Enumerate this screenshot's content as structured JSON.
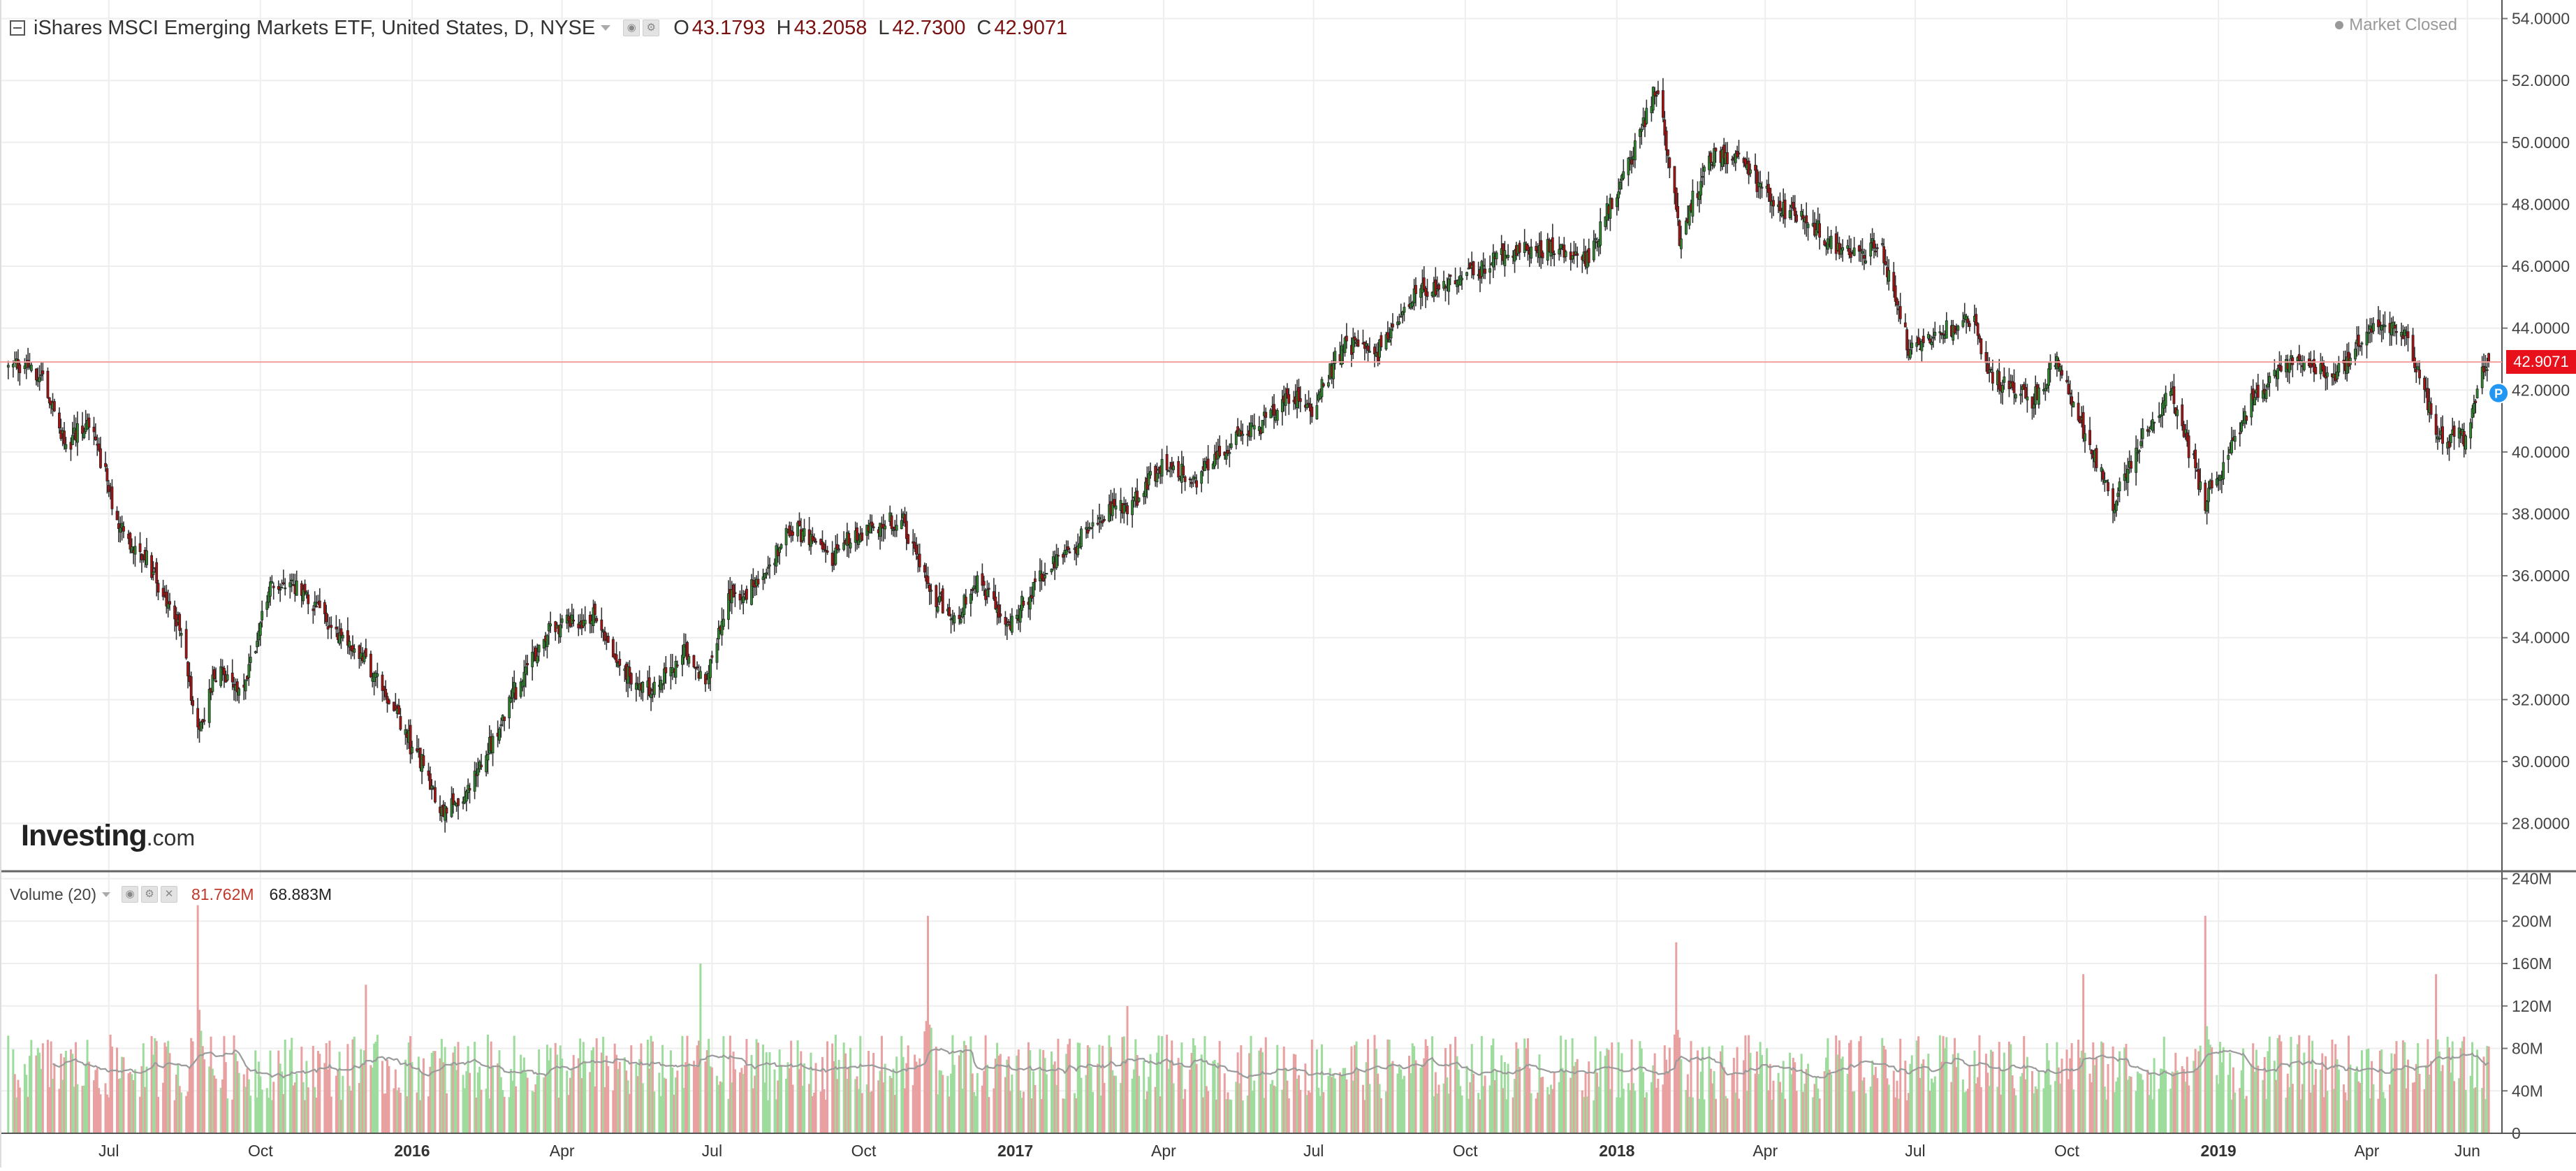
{
  "header": {
    "symbol_title": "iShares MSCI Emerging Markets ETF, United States, D, NYSE",
    "o_label": "O",
    "o_value": "43.1793",
    "h_label": "H",
    "h_value": "43.2058",
    "l_label": "L",
    "l_value": "42.7300",
    "c_label": "C",
    "c_value": "42.9071",
    "status": "Market Closed"
  },
  "volume_legend": {
    "title": "Volume (20)",
    "value_1": "81.762M",
    "value_2": "68.883M"
  },
  "logo": {
    "brand": "Investing",
    "suffix": ".com"
  },
  "last_price": "42.9071",
  "marker_label": "P",
  "colors": {
    "up": "#2e8b2e",
    "down": "#b01010",
    "vol_up": "#9edc9e",
    "vol_down": "#e9a0a0",
    "ma_line": "#9b9b9b",
    "last_price": "#e8101a",
    "grid": "#eeeeee"
  },
  "chart_data": [
    {
      "type": "candlestick",
      "title": "iShares MSCI Emerging Markets ETF, United States, D, NYSE",
      "xlabel": "",
      "ylabel": "",
      "ylim": [
        26.5,
        54.6
      ],
      "y_ticks": [
        "28.0000",
        "30.0000",
        "32.0000",
        "34.0000",
        "36.0000",
        "38.0000",
        "40.0000",
        "42.0000",
        "44.0000",
        "46.0000",
        "48.0000",
        "50.0000",
        "52.0000",
        "54.0000"
      ],
      "x_ticks": [
        {
          "label": "Jul",
          "date": "2015-07-01",
          "bold": false
        },
        {
          "label": "Oct",
          "date": "2015-10-01",
          "bold": false
        },
        {
          "label": "2016",
          "date": "2016-01-01",
          "bold": true
        },
        {
          "label": "Apr",
          "date": "2016-04-01",
          "bold": false
        },
        {
          "label": "Jul",
          "date": "2016-07-01",
          "bold": false
        },
        {
          "label": "Oct",
          "date": "2016-10-01",
          "bold": false
        },
        {
          "label": "2017",
          "date": "2017-01-01",
          "bold": true
        },
        {
          "label": "Apr",
          "date": "2017-04-01",
          "bold": false
        },
        {
          "label": "Jul",
          "date": "2017-07-01",
          "bold": false
        },
        {
          "label": "Oct",
          "date": "2017-10-01",
          "bold": false
        },
        {
          "label": "2018",
          "date": "2018-01-01",
          "bold": true
        },
        {
          "label": "Apr",
          "date": "2018-04-01",
          "bold": false
        },
        {
          "label": "Jul",
          "date": "2018-07-01",
          "bold": false
        },
        {
          "label": "Oct",
          "date": "2018-10-01",
          "bold": false
        },
        {
          "label": "2019",
          "date": "2019-01-01",
          "bold": true
        },
        {
          "label": "Apr",
          "date": "2019-04-01",
          "bold": false
        },
        {
          "label": "Jun",
          "date": "2019-06-01",
          "bold": false
        }
      ],
      "last_close": 42.9071,
      "close_path": [
        [
          "2015-05-01",
          42.9
        ],
        [
          "2015-05-20",
          42.6
        ],
        [
          "2015-06-05",
          40.2
        ],
        [
          "2015-06-20",
          40.9
        ],
        [
          "2015-07-08",
          37.5
        ],
        [
          "2015-07-25",
          36.4
        ],
        [
          "2015-08-15",
          33.9
        ],
        [
          "2015-08-24",
          30.8
        ],
        [
          "2015-09-05",
          33.1
        ],
        [
          "2015-09-20",
          32.3
        ],
        [
          "2015-10-08",
          35.8
        ],
        [
          "2015-10-25",
          35.6
        ],
        [
          "2015-11-15",
          34.2
        ],
        [
          "2015-12-05",
          33.1
        ],
        [
          "2015-12-20",
          31.8
        ],
        [
          "2016-01-10",
          29.5
        ],
        [
          "2016-01-21",
          28.2
        ],
        [
          "2016-02-10",
          29.6
        ],
        [
          "2016-03-01",
          32.0
        ],
        [
          "2016-03-25",
          34.2
        ],
        [
          "2016-04-20",
          34.7
        ],
        [
          "2016-05-10",
          32.8
        ],
        [
          "2016-05-25",
          32.3
        ],
        [
          "2016-06-15",
          33.6
        ],
        [
          "2016-06-27",
          32.6
        ],
        [
          "2016-07-10",
          35.1
        ],
        [
          "2016-07-30",
          35.8
        ],
        [
          "2016-08-20",
          37.6
        ],
        [
          "2016-09-12",
          36.6
        ],
        [
          "2016-09-30",
          37.5
        ],
        [
          "2016-10-25",
          37.7
        ],
        [
          "2016-11-10",
          35.6
        ],
        [
          "2016-11-25",
          34.6
        ],
        [
          "2016-12-10",
          35.8
        ],
        [
          "2016-12-28",
          34.4
        ],
        [
          "2017-01-20",
          36.2
        ],
        [
          "2017-02-20",
          37.8
        ],
        [
          "2017-03-15",
          38.5
        ],
        [
          "2017-03-31",
          39.5
        ],
        [
          "2017-04-20",
          39.2
        ],
        [
          "2017-05-20",
          40.5
        ],
        [
          "2017-06-15",
          41.7
        ],
        [
          "2017-06-30",
          41.5
        ],
        [
          "2017-07-20",
          43.5
        ],
        [
          "2017-08-10",
          43.3
        ],
        [
          "2017-09-01",
          45.2
        ],
        [
          "2017-09-25",
          45.5
        ],
        [
          "2017-10-20",
          46.3
        ],
        [
          "2017-11-10",
          46.7
        ],
        [
          "2017-11-30",
          46.4
        ],
        [
          "2017-12-15",
          46.2
        ],
        [
          "2018-01-05",
          49.0
        ],
        [
          "2018-01-26",
          51.8
        ],
        [
          "2018-02-08",
          47.0
        ],
        [
          "2018-02-25",
          49.4
        ],
        [
          "2018-03-15",
          49.7
        ],
        [
          "2018-04-05",
          48.0
        ],
        [
          "2018-04-25",
          47.6
        ],
        [
          "2018-05-20",
          46.3
        ],
        [
          "2018-06-10",
          46.6
        ],
        [
          "2018-06-28",
          43.2
        ],
        [
          "2018-07-15",
          43.9
        ],
        [
          "2018-08-05",
          44.4
        ],
        [
          "2018-08-15",
          42.6
        ],
        [
          "2018-09-10",
          41.6
        ],
        [
          "2018-09-25",
          43.0
        ],
        [
          "2018-10-15",
          40.2
        ],
        [
          "2018-10-29",
          38.3
        ],
        [
          "2018-11-15",
          40.4
        ],
        [
          "2018-12-03",
          41.9
        ],
        [
          "2018-12-24",
          38.4
        ],
        [
          "2019-01-20",
          41.6
        ],
        [
          "2019-02-15",
          43.0
        ],
        [
          "2019-03-10",
          42.4
        ],
        [
          "2019-04-10",
          44.3
        ],
        [
          "2019-04-25",
          43.8
        ],
        [
          "2019-05-13",
          40.6
        ],
        [
          "2019-05-30",
          40.4
        ],
        [
          "2019-06-10",
          42.4
        ],
        [
          "2019-06-14",
          42.9071
        ]
      ]
    },
    {
      "type": "bar",
      "title": "Volume (20)",
      "xlabel": "",
      "ylabel": "",
      "ylim": [
        0,
        245000000
      ],
      "y_ticks": [
        "0",
        "40M",
        "80M",
        "120M",
        "160M",
        "200M",
        "240M"
      ],
      "typical_volume": 68883000,
      "last_volume": 81762000,
      "moving_average_period": 20,
      "volume_spikes": [
        [
          "2015-08-24",
          215000000
        ],
        [
          "2015-12-04",
          140000000
        ],
        [
          "2016-06-24",
          160000000
        ],
        [
          "2016-11-09",
          205000000
        ],
        [
          "2017-03-10",
          120000000
        ],
        [
          "2018-02-06",
          180000000
        ],
        [
          "2018-10-11",
          150000000
        ],
        [
          "2018-12-24",
          205000000
        ],
        [
          "2019-05-13",
          150000000
        ]
      ]
    }
  ]
}
